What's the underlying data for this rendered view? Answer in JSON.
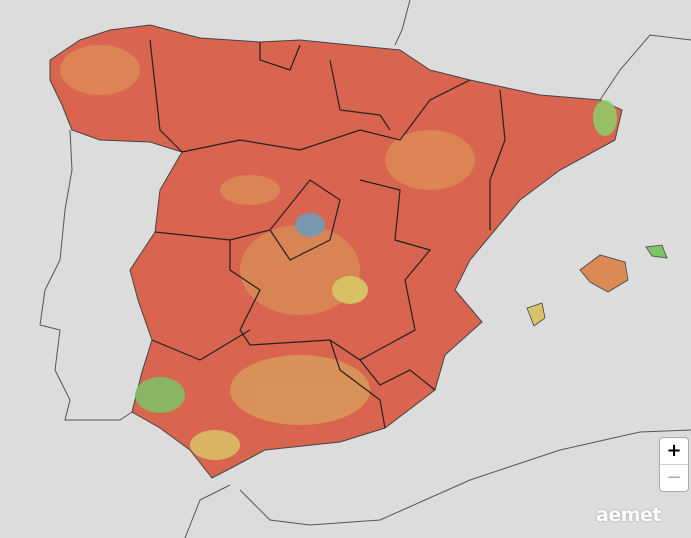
{
  "controls": {
    "zoom_in": "+",
    "zoom_out": "−"
  },
  "logo": "aemet"
}
